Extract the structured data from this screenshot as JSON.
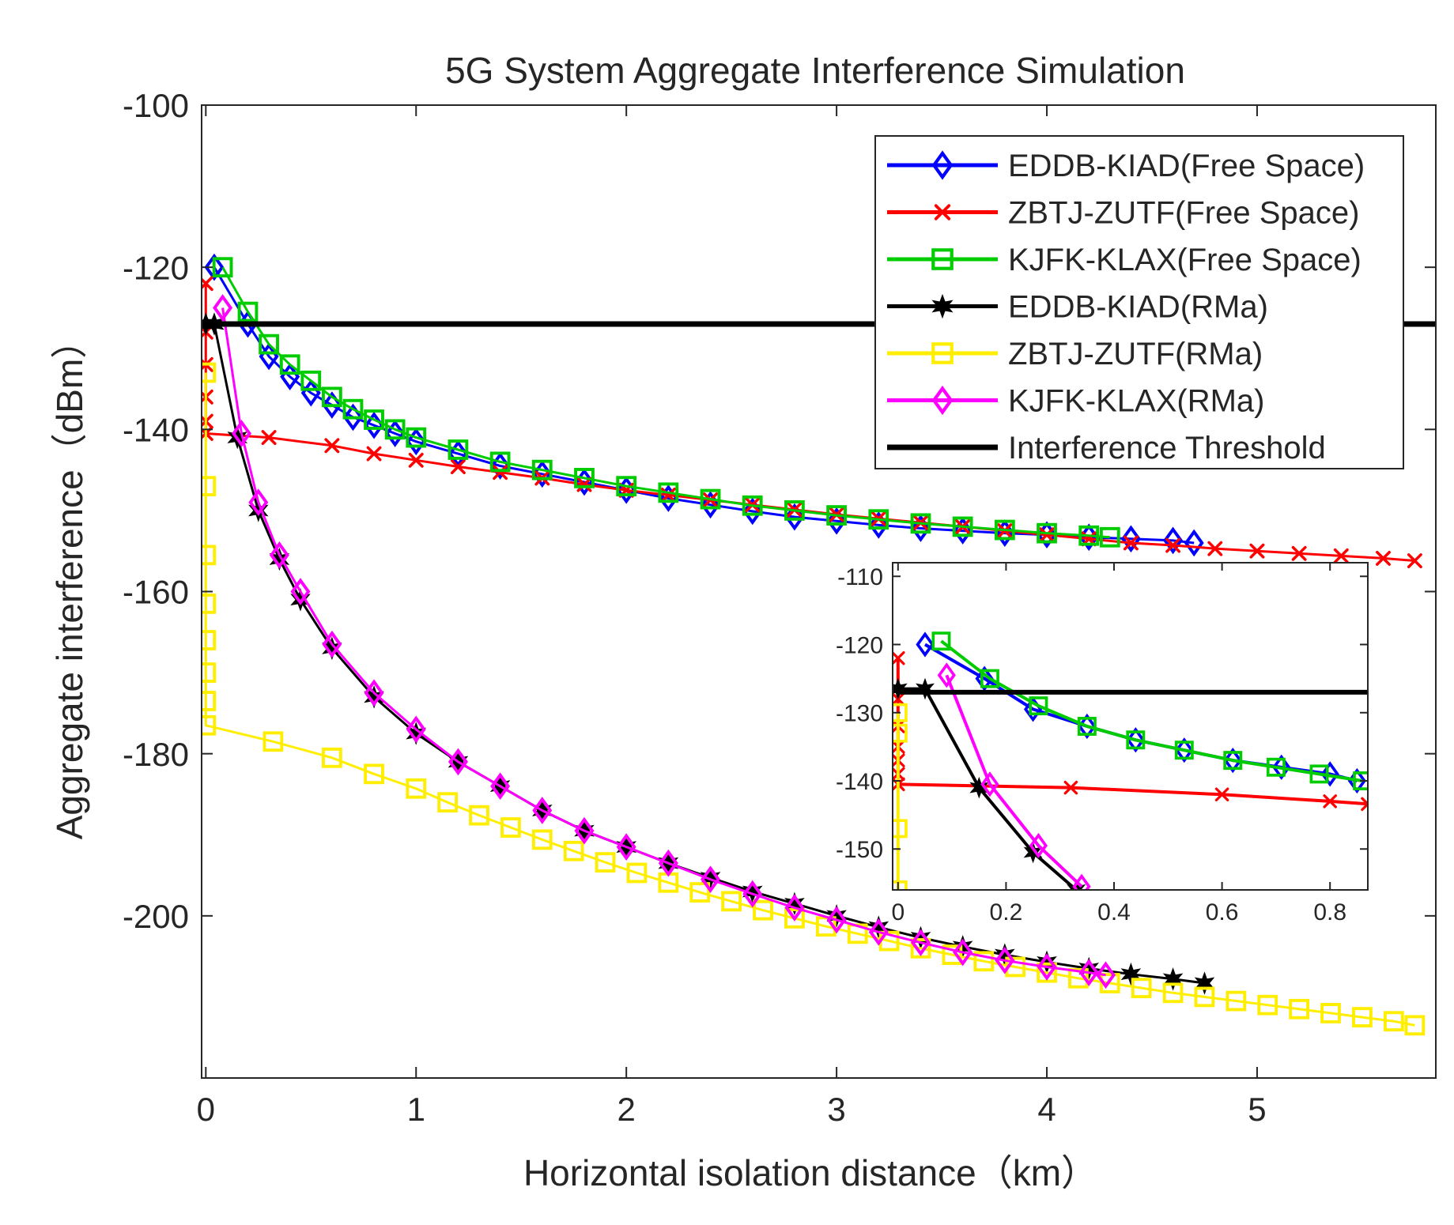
{
  "chart_data": [
    {
      "id": "main",
      "type": "line",
      "title": "5G System Aggregate Interference Simulation",
      "xlabel": "Horizontal isolation distance（km）",
      "ylabel": "Aggregate interference（dBm）",
      "xlim": [
        -0.02,
        5.85
      ],
      "ylim": [
        -220,
        -100
      ],
      "xticks": [
        0,
        1,
        2,
        3,
        4,
        5
      ],
      "yticks": [
        -100,
        -120,
        -140,
        -160,
        -180,
        -200
      ],
      "grid": false,
      "legend_position": "top-right",
      "series": [
        {
          "name": "EDDB-KIAD(Free Space)",
          "color": "#0000ff",
          "marker": "diamond",
          "x": [
            0.04,
            0.2,
            0.3,
            0.4,
            0.5,
            0.6,
            0.7,
            0.8,
            0.9,
            1.0,
            1.2,
            1.4,
            1.6,
            1.8,
            2.0,
            2.2,
            2.4,
            2.6,
            2.8,
            3.0,
            3.2,
            3.4,
            3.6,
            3.8,
            4.0,
            4.2,
            4.4,
            4.6,
            4.7
          ],
          "y": [
            -120,
            -127,
            -131,
            -133.5,
            -135.5,
            -137,
            -138.5,
            -139.5,
            -140.5,
            -141.5,
            -143,
            -144.5,
            -145.5,
            -146.5,
            -147.5,
            -148.5,
            -149.3,
            -150.1,
            -150.8,
            -151.3,
            -151.8,
            -152.2,
            -152.5,
            -152.8,
            -153,
            -153.3,
            -153.5,
            -153.7,
            -154
          ]
        },
        {
          "name": "ZBTJ-ZUTF(Free Space)",
          "color": "#ff0000",
          "marker": "x",
          "x": [
            0,
            0,
            0,
            0,
            0,
            0,
            0.3,
            0.6,
            0.8,
            1.0,
            1.2,
            1.4,
            1.6,
            1.8,
            2.0,
            2.2,
            2.4,
            2.6,
            2.8,
            3.0,
            3.2,
            3.4,
            3.6,
            3.8,
            4.0,
            4.2,
            4.4,
            4.6,
            4.8,
            5.0,
            5.2,
            5.4,
            5.6,
            5.75
          ],
          "y": [
            -122,
            -128,
            -132,
            -136,
            -139,
            -140.5,
            -141,
            -142,
            -143,
            -143.8,
            -144.6,
            -145.3,
            -146,
            -146.8,
            -147.5,
            -148.1,
            -148.7,
            -149.3,
            -149.9,
            -150.5,
            -151,
            -151.5,
            -152,
            -152.5,
            -153,
            -153.5,
            -154,
            -154.3,
            -154.7,
            -155,
            -155.3,
            -155.6,
            -155.9,
            -156.2
          ]
        },
        {
          "name": "KJFK-KLAX(Free Space)",
          "color": "#00cc00",
          "marker": "square",
          "x": [
            0.08,
            0.2,
            0.3,
            0.4,
            0.5,
            0.6,
            0.7,
            0.8,
            0.9,
            1.0,
            1.2,
            1.4,
            1.6,
            1.8,
            2.0,
            2.2,
            2.4,
            2.6,
            2.8,
            3.0,
            3.2,
            3.4,
            3.6,
            3.8,
            4.0,
            4.2,
            4.3
          ],
          "y": [
            -120,
            -125.5,
            -129.5,
            -132,
            -134,
            -136,
            -137.5,
            -138.8,
            -140,
            -141,
            -142.5,
            -144,
            -145,
            -146,
            -147,
            -147.8,
            -148.6,
            -149.4,
            -150,
            -150.6,
            -151.1,
            -151.6,
            -152,
            -152.4,
            -152.8,
            -153.1,
            -153.3
          ]
        },
        {
          "name": "EDDB-KIAD(RMa)",
          "color": "#000000",
          "marker": "star",
          "x": [
            0,
            0.04,
            0.15,
            0.25,
            0.35,
            0.45,
            0.6,
            0.8,
            1.0,
            1.2,
            1.4,
            1.6,
            1.8,
            2.0,
            2.2,
            2.4,
            2.6,
            2.8,
            3.0,
            3.2,
            3.4,
            3.6,
            3.8,
            4.0,
            4.2,
            4.4,
            4.6,
            4.75
          ],
          "y": [
            -127,
            -127,
            -141,
            -150,
            -156,
            -161,
            -167,
            -173,
            -177.5,
            -181,
            -184,
            -187,
            -189.5,
            -191.5,
            -193.5,
            -195.3,
            -197,
            -198.5,
            -200,
            -201.4,
            -202.7,
            -203.8,
            -204.8,
            -205.7,
            -206.5,
            -207.2,
            -207.8,
            -208.3
          ]
        },
        {
          "name": "ZBTJ-ZUTF(RMa)",
          "color": "#ffee00",
          "marker": "square",
          "x": [
            0,
            0,
            0,
            0,
            0,
            0,
            0,
            0,
            0.32,
            0.6,
            0.8,
            1.0,
            1.15,
            1.3,
            1.45,
            1.6,
            1.75,
            1.9,
            2.05,
            2.2,
            2.35,
            2.5,
            2.65,
            2.8,
            2.95,
            3.1,
            3.25,
            3.4,
            3.55,
            3.7,
            3.85,
            4.0,
            4.15,
            4.3,
            4.45,
            4.6,
            4.75,
            4.9,
            5.05,
            5.2,
            5.35,
            5.5,
            5.65,
            5.75
          ],
          "y": [
            -133,
            -147,
            -155.5,
            -161.5,
            -166,
            -170,
            -173.5,
            -176.5,
            -178.5,
            -180.5,
            -182.5,
            -184.3,
            -186,
            -187.6,
            -189.1,
            -190.6,
            -192,
            -193.4,
            -194.7,
            -195.9,
            -197.1,
            -198.2,
            -199.3,
            -200.3,
            -201.3,
            -202.2,
            -203.1,
            -204,
            -204.8,
            -205.6,
            -206.3,
            -207,
            -207.7,
            -208.3,
            -208.9,
            -209.5,
            -210,
            -210.5,
            -211,
            -211.5,
            -212,
            -212.5,
            -213,
            -213.5
          ]
        },
        {
          "name": "KJFK-KLAX(RMa)",
          "color": "#ff00ff",
          "marker": "diamond",
          "x": [
            0.08,
            0.17,
            0.25,
            0.35,
            0.45,
            0.6,
            0.8,
            1.0,
            1.2,
            1.4,
            1.6,
            1.8,
            2.0,
            2.2,
            2.4,
            2.6,
            2.8,
            3.0,
            3.2,
            3.4,
            3.6,
            3.8,
            4.0,
            4.2,
            4.28
          ],
          "y": [
            -125,
            -140.5,
            -149,
            -155.5,
            -160,
            -166.5,
            -172.5,
            -177,
            -181,
            -184,
            -187,
            -189.5,
            -191.5,
            -193.5,
            -195.5,
            -197.3,
            -199,
            -200.5,
            -202,
            -203.3,
            -204.5,
            -205.5,
            -206.3,
            -207,
            -207.3
          ]
        },
        {
          "name": "Interference Threshold",
          "color": "#000000",
          "marker": "none",
          "x": [
            0,
            5.85
          ],
          "y": [
            -127,
            -127
          ]
        }
      ]
    },
    {
      "id": "inset",
      "type": "line",
      "title": "",
      "xlim": [
        -0.01,
        0.87
      ],
      "ylim": [
        -156,
        -108
      ],
      "xticks": [
        0,
        0.2,
        0.4,
        0.6,
        0.8
      ],
      "xtick_labels": [
        "0",
        "0.2",
        "0.4",
        "0.6",
        "0.8"
      ],
      "yticks": [
        -110,
        -120,
        -130,
        -140,
        -150
      ],
      "grid": false,
      "series": [
        {
          "name": "EDDB-KIAD(Free Space)",
          "color": "#0000ff",
          "marker": "diamond",
          "x": [
            0.05,
            0.16,
            0.25,
            0.35,
            0.44,
            0.53,
            0.62,
            0.71,
            0.8,
            0.85
          ],
          "y": [
            -120,
            -125,
            -129.5,
            -132,
            -134,
            -135.5,
            -137,
            -138,
            -139,
            -140
          ]
        },
        {
          "name": "ZBTJ-ZUTF(Free Space)",
          "color": "#ff0000",
          "marker": "x",
          "x": [
            0,
            0,
            0,
            0,
            0,
            0,
            0,
            0.32,
            0.6,
            0.8,
            0.87
          ],
          "y": [
            -122,
            -128,
            -132,
            -135,
            -137,
            -139,
            -140.5,
            -141,
            -142,
            -143,
            -143.4
          ]
        },
        {
          "name": "KJFK-KLAX(Free Space)",
          "color": "#00cc00",
          "marker": "square",
          "x": [
            0.08,
            0.17,
            0.26,
            0.35,
            0.44,
            0.53,
            0.62,
            0.7,
            0.78,
            0.86
          ],
          "y": [
            -119.5,
            -125,
            -129,
            -132,
            -134,
            -135.5,
            -137,
            -138,
            -139,
            -140
          ]
        },
        {
          "name": "EDDB-KIAD(RMa)",
          "color": "#000000",
          "marker": "star",
          "x": [
            0,
            0.05,
            0.15,
            0.25,
            0.33
          ],
          "y": [
            -126.5,
            -126.5,
            -141,
            -150.5,
            -156
          ]
        },
        {
          "name": "ZBTJ-ZUTF(RMa)",
          "color": "#ffee00",
          "marker": "square",
          "x": [
            0,
            0,
            0,
            0
          ],
          "y": [
            -156,
            -147,
            -133,
            -130
          ]
        },
        {
          "name": "KJFK-KLAX(RMa)",
          "color": "#ff00ff",
          "marker": "diamond",
          "x": [
            0.09,
            0.17,
            0.26,
            0.34
          ],
          "y": [
            -124.5,
            -140.5,
            -149.5,
            -155.5
          ]
        },
        {
          "name": "Interference Threshold",
          "color": "#000000",
          "marker": "none",
          "x": [
            0,
            0.87
          ],
          "y": [
            -127,
            -127
          ]
        }
      ]
    }
  ]
}
